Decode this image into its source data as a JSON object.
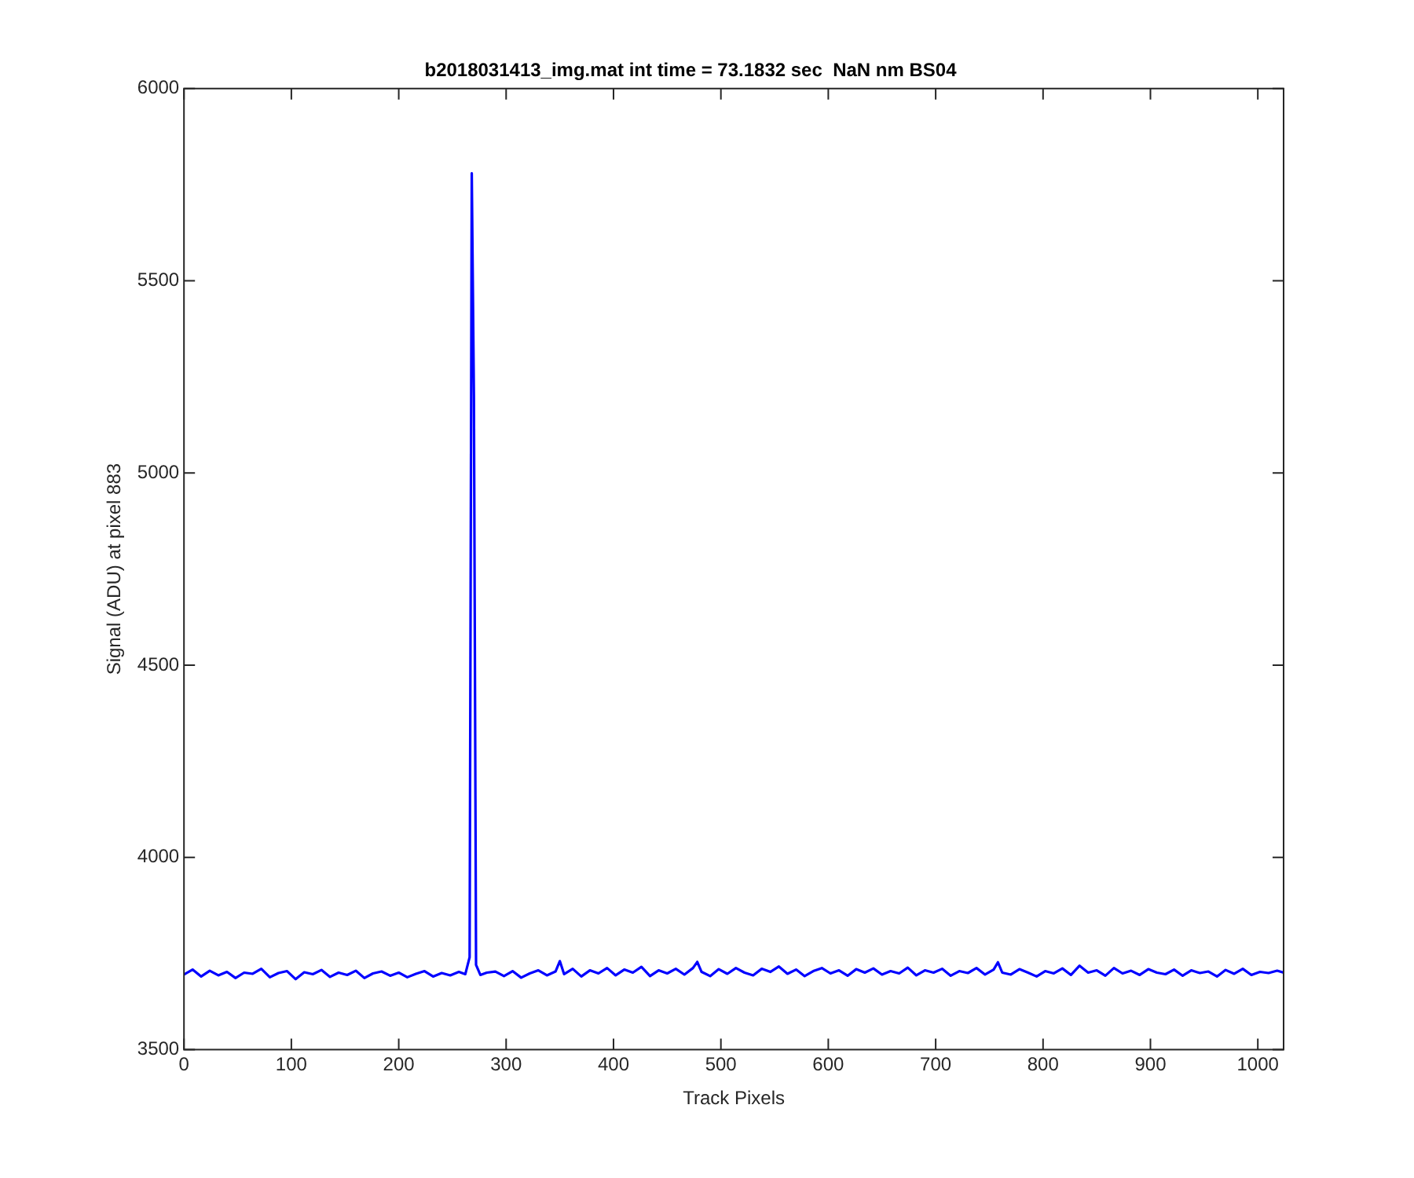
{
  "chart_data": {
    "type": "line",
    "title": "b2018031413_img.mat int time = 73.1832 sec  NaN nm BS04",
    "xlabel": "Track Pixels",
    "ylabel": "Signal (ADU) at pixel 883",
    "x": [
      0,
      8,
      16,
      24,
      32,
      40,
      48,
      56,
      64,
      72,
      80,
      88,
      96,
      104,
      112,
      120,
      128,
      136,
      144,
      152,
      160,
      168,
      176,
      184,
      192,
      200,
      208,
      216,
      224,
      232,
      240,
      248,
      256,
      262,
      266,
      268,
      270,
      272,
      276,
      282,
      290,
      298,
      306,
      314,
      322,
      330,
      338,
      346,
      350,
      354,
      362,
      370,
      378,
      386,
      394,
      402,
      410,
      418,
      426,
      434,
      442,
      450,
      458,
      466,
      474,
      478,
      482,
      490,
      498,
      506,
      514,
      522,
      530,
      538,
      546,
      554,
      562,
      570,
      578,
      586,
      594,
      602,
      610,
      618,
      626,
      634,
      642,
      650,
      658,
      666,
      674,
      682,
      690,
      698,
      706,
      714,
      722,
      730,
      738,
      746,
      754,
      758,
      762,
      770,
      778,
      786,
      794,
      802,
      810,
      818,
      826,
      834,
      842,
      850,
      858,
      866,
      874,
      882,
      890,
      898,
      906,
      914,
      922,
      930,
      938,
      946,
      954,
      962,
      970,
      978,
      986,
      994,
      1002,
      1010,
      1018,
      1024
    ],
    "series": [
      {
        "color": "#0000ff",
        "values": [
          3695,
          3708,
          3690,
          3705,
          3693,
          3702,
          3686,
          3700,
          3697,
          3710,
          3688,
          3699,
          3704,
          3683,
          3701,
          3696,
          3707,
          3689,
          3700,
          3694,
          3705,
          3686,
          3698,
          3703,
          3692,
          3700,
          3688,
          3697,
          3704,
          3690,
          3699,
          3693,
          3702,
          3696,
          3740,
          5780,
          5200,
          3720,
          3694,
          3700,
          3703,
          3691,
          3704,
          3687,
          3698,
          3706,
          3693,
          3703,
          3730,
          3696,
          3710,
          3690,
          3706,
          3698,
          3712,
          3693,
          3708,
          3700,
          3715,
          3691,
          3706,
          3698,
          3710,
          3695,
          3712,
          3728,
          3702,
          3691,
          3709,
          3697,
          3712,
          3700,
          3693,
          3710,
          3702,
          3716,
          3697,
          3708,
          3691,
          3704,
          3712,
          3698,
          3706,
          3692,
          3709,
          3700,
          3711,
          3695,
          3704,
          3698,
          3713,
          3693,
          3706,
          3700,
          3710,
          3692,
          3704,
          3699,
          3712,
          3695,
          3708,
          3727,
          3700,
          3695,
          3709,
          3700,
          3690,
          3704,
          3698,
          3711,
          3694,
          3718,
          3700,
          3706,
          3692,
          3712,
          3698,
          3705,
          3694,
          3709,
          3700,
          3696,
          3708,
          3692,
          3706,
          3699,
          3703,
          3690,
          3707,
          3697,
          3710,
          3694,
          3702,
          3699,
          3705,
          3700
        ]
      }
    ],
    "xlim": [
      0,
      1024
    ],
    "xticks": [
      0,
      100,
      200,
      300,
      400,
      500,
      600,
      700,
      800,
      900,
      1000
    ],
    "ylim": [
      3500,
      6000
    ],
    "yticks": [
      3500,
      4000,
      4500,
      5000,
      5500,
      6000
    ]
  }
}
